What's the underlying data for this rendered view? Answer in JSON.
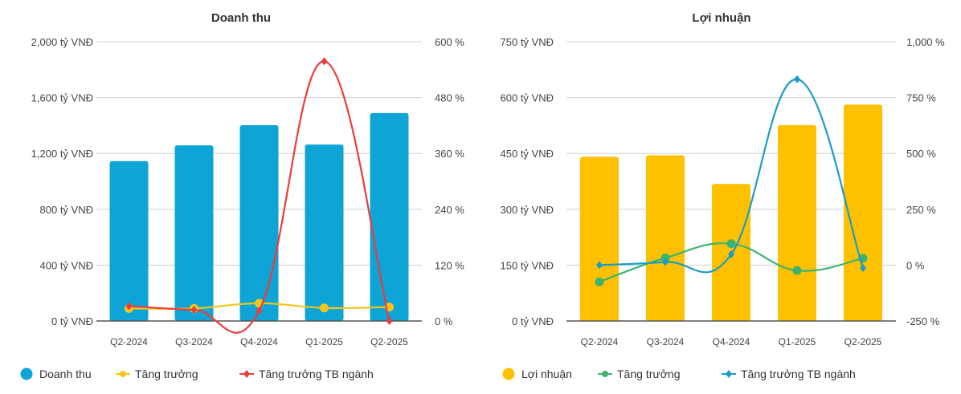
{
  "chart_data": [
    {
      "type": "bar",
      "title": "Doanh thu",
      "categories": [
        "Q2-2024",
        "Q3-2024",
        "Q4-2024",
        "Q1-2025",
        "Q2-2025"
      ],
      "left_axis": {
        "range": [
          0,
          2000
        ],
        "ticks": [
          "0 tỷ VNĐ",
          "400 tỷ VNĐ",
          "800 tỷ VNĐ",
          "1,200 tỷ VNĐ",
          "1,600 tỷ VNĐ",
          "2,000 tỷ VNĐ"
        ]
      },
      "right_axis": {
        "range": [
          0,
          600
        ],
        "ticks": [
          "0 %",
          "120 %",
          "240 %",
          "360 %",
          "480 %",
          "600 %"
        ]
      },
      "grid": true,
      "legend_position": "bottom-left",
      "series": [
        {
          "name": "Doanh thu",
          "kind": "bar",
          "axis": "left",
          "color": "#0ea5d6",
          "values": [
            1145,
            1258,
            1402,
            1264,
            1489
          ]
        },
        {
          "name": "Tăng trưởng",
          "kind": "line",
          "marker": "circle",
          "axis": "right",
          "color": "#f5c518",
          "values": [
            27,
            27,
            38,
            28,
            30
          ]
        },
        {
          "name": "Tăng trưởng TB ngành",
          "kind": "line",
          "marker": "diamond",
          "axis": "right",
          "color": "#ee3b3b",
          "values": [
            32,
            24,
            22,
            558,
            0
          ]
        }
      ]
    },
    {
      "type": "bar",
      "title": "Lợi nhuận",
      "categories": [
        "Q2-2024",
        "Q3-2024",
        "Q4-2024",
        "Q1-2025",
        "Q2-2025"
      ],
      "left_axis": {
        "range": [
          0,
          750
        ],
        "ticks": [
          "0 tỷ VNĐ",
          "150 tỷ VNĐ",
          "300 tỷ VNĐ",
          "450 tỷ VNĐ",
          "600 tỷ VNĐ",
          "750 tỷ VNĐ"
        ]
      },
      "right_axis": {
        "range": [
          -250,
          1000
        ],
        "ticks": [
          "-250 %",
          "0 %",
          "250 %",
          "500 %",
          "750 %",
          "1,000 %"
        ]
      },
      "grid": true,
      "legend_position": "bottom-left",
      "series": [
        {
          "name": "Lợi nhuận",
          "kind": "bar",
          "axis": "left",
          "color": "#ffc000",
          "values": [
            441,
            445,
            368,
            526,
            581
          ]
        },
        {
          "name": "Tăng trưởng",
          "kind": "line",
          "marker": "circle",
          "axis": "right",
          "color": "#3cb371",
          "values": [
            -75,
            32,
            96,
            -24,
            30
          ]
        },
        {
          "name": "Tăng trưởng TB ngành",
          "kind": "line",
          "marker": "diamond",
          "axis": "right",
          "color": "#1a9cc9",
          "values": [
            0,
            14,
            48,
            832,
            -13
          ]
        }
      ]
    }
  ]
}
